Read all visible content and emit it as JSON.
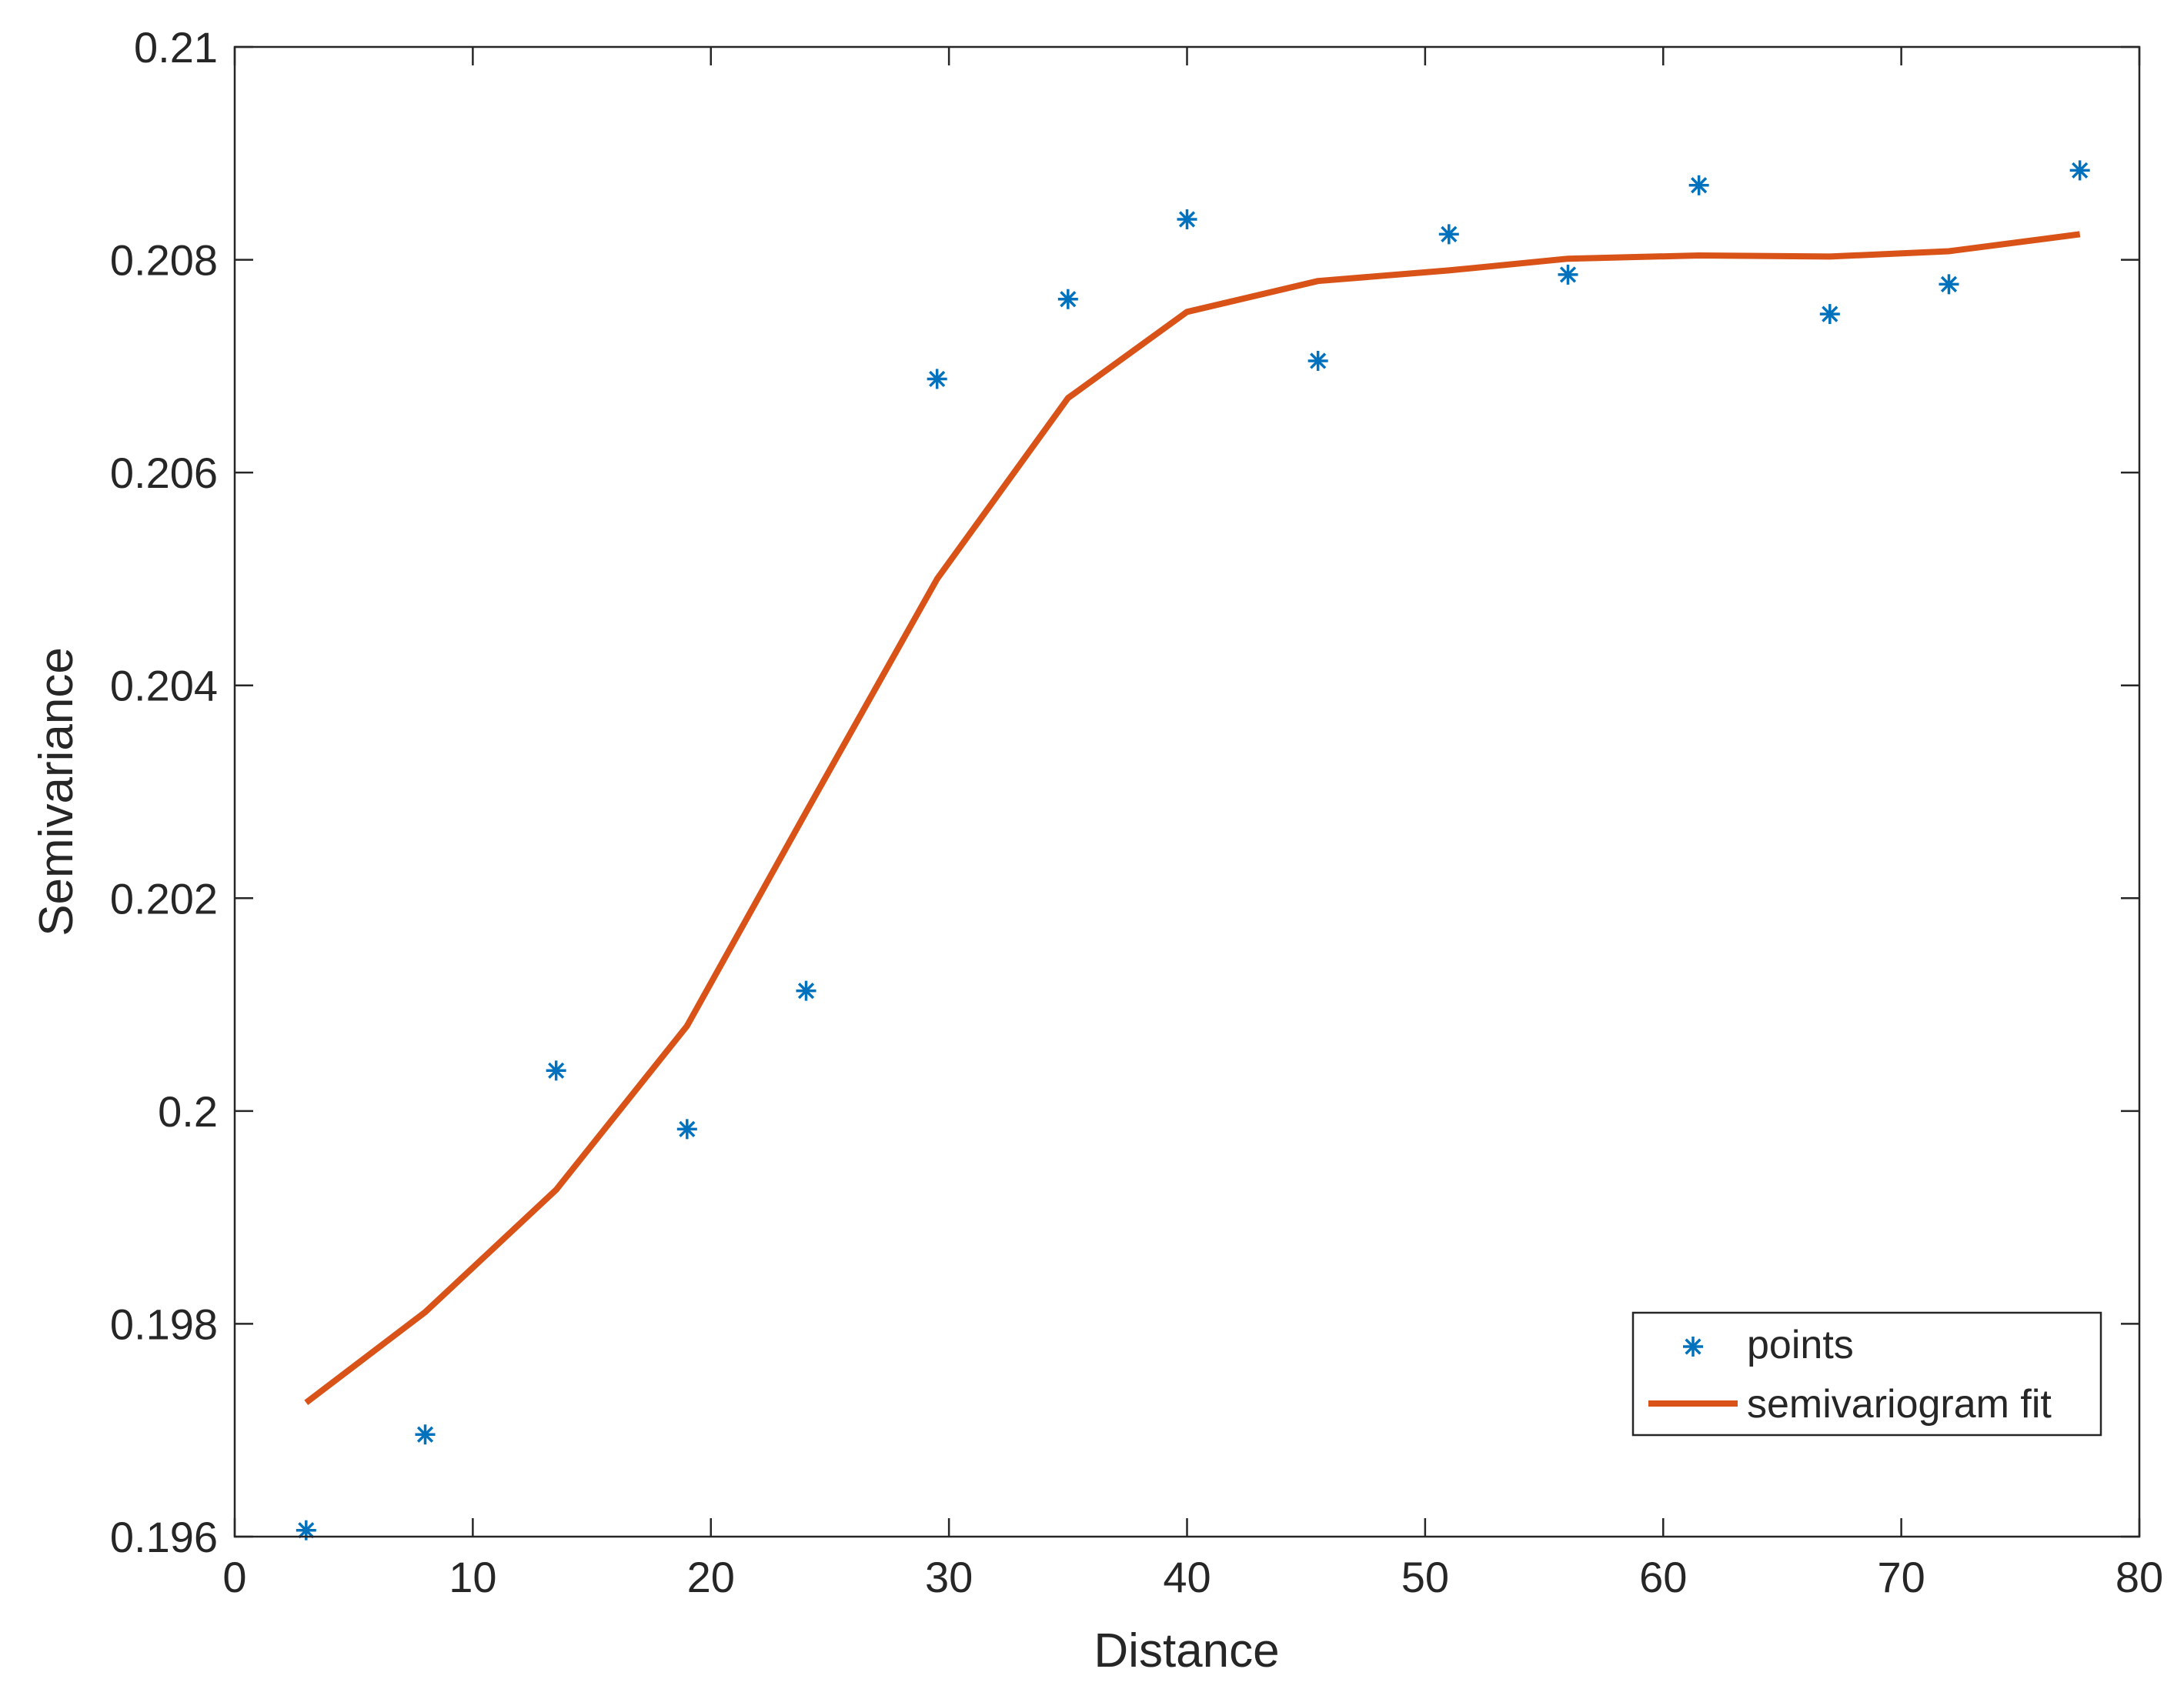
{
  "chart_data": {
    "type": "scatter",
    "xlabel": "Distance",
    "ylabel": "Semivariance",
    "xlim": [
      0,
      80
    ],
    "ylim": [
      0.196,
      0.21
    ],
    "x_ticks": [
      0,
      10,
      20,
      30,
      40,
      50,
      60,
      70,
      80
    ],
    "x_tick_labels": [
      "0",
      "10",
      "20",
      "30",
      "40",
      "50",
      "60",
      "70",
      "80"
    ],
    "y_ticks": [
      0.196,
      0.198,
      0.2,
      0.202,
      0.204,
      0.206,
      0.208,
      0.21
    ],
    "y_tick_labels": [
      "0.196",
      "0.198",
      "0.2",
      "0.202",
      "0.204",
      "0.206",
      "0.208",
      "0.21"
    ],
    "grid": false,
    "legend_position": "bottom-right",
    "series": [
      {
        "name": "points",
        "kind": "scatter",
        "marker": "asterisk",
        "color": "#0072bd",
        "x": [
          3,
          8,
          13.5,
          19,
          24,
          29.5,
          35,
          40,
          45.5,
          51,
          56,
          61.5,
          67,
          72,
          77.5
        ],
        "y": [
          0.19606,
          0.19696,
          0.20038,
          0.19983,
          0.20113,
          0.20688,
          0.20763,
          0.20838,
          0.20705,
          0.20824,
          0.20786,
          0.2087,
          0.20749,
          0.20777,
          0.20884
        ]
      },
      {
        "name": "semivariogram fit",
        "kind": "line",
        "color": "#d95319",
        "x": [
          3,
          8,
          13.5,
          19,
          24,
          29.5,
          35,
          40,
          45.5,
          51,
          56,
          61.5,
          67,
          72,
          77.5
        ],
        "y": [
          0.19726,
          0.19811,
          0.19926,
          0.2008,
          0.20281,
          0.205,
          0.2067,
          0.20751,
          0.2078,
          0.2079,
          0.20801,
          0.20804,
          0.20803,
          0.20808,
          0.20824
        ]
      }
    ]
  }
}
